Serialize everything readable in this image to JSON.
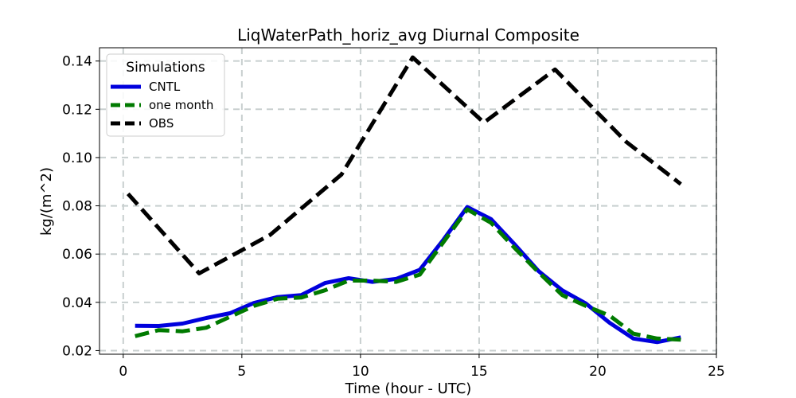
{
  "chart_data": {
    "type": "line",
    "title": "LiqWaterPath_horiz_avg Diurnal Composite",
    "xlabel": "Time (hour - UTC)",
    "ylabel": "kg/(m^2)",
    "xlim": [
      -1.0,
      25.0
    ],
    "ylim": [
      0.0185,
      0.1455
    ],
    "xticks": [
      0,
      5,
      10,
      15,
      20,
      25
    ],
    "xtick_labels": [
      "0",
      "5",
      "10",
      "15",
      "20",
      "25"
    ],
    "yticks": [
      0.02,
      0.04,
      0.06,
      0.08,
      0.1,
      0.12,
      0.14
    ],
    "ytick_labels": [
      "0.02",
      "0.04",
      "0.06",
      "0.08",
      "0.10",
      "0.12",
      "0.14"
    ],
    "grid": true,
    "legend": {
      "title": "Simulations",
      "placement": "top-left"
    },
    "series": [
      {
        "name": "CNTL",
        "color": "#0000dd",
        "style": "solid",
        "x": [
          0.5,
          1.5,
          2.5,
          3.5,
          4.5,
          5.5,
          6.5,
          7.5,
          8.5,
          9.5,
          10.5,
          11.5,
          12.5,
          13.5,
          14.5,
          15.5,
          16.5,
          17.5,
          18.5,
          19.5,
          20.5,
          21.5,
          22.5,
          23.5
        ],
        "y": [
          0.0303,
          0.0302,
          0.0312,
          0.0335,
          0.0355,
          0.0397,
          0.0422,
          0.043,
          0.048,
          0.05,
          0.0485,
          0.0497,
          0.0535,
          0.066,
          0.0795,
          0.0745,
          0.064,
          0.053,
          0.045,
          0.0395,
          0.0315,
          0.025,
          0.0235,
          0.0255
        ]
      },
      {
        "name": "one month",
        "color": "#007a00",
        "style": "dashed",
        "x": [
          0.5,
          1.5,
          2.5,
          3.5,
          4.5,
          5.5,
          6.5,
          7.5,
          8.5,
          9.5,
          10.5,
          11.5,
          12.5,
          13.5,
          14.5,
          15.5,
          16.5,
          17.5,
          18.5,
          19.5,
          20.5,
          21.5,
          22.5,
          23.5
        ],
        "y": [
          0.026,
          0.0285,
          0.028,
          0.0295,
          0.034,
          0.0385,
          0.0415,
          0.042,
          0.045,
          0.049,
          0.049,
          0.0485,
          0.0515,
          0.065,
          0.0785,
          0.073,
          0.0625,
          0.0525,
          0.043,
          0.0385,
          0.0345,
          0.027,
          0.025,
          0.0245
        ]
      },
      {
        "name": "OBS",
        "color": "#000000",
        "style": "dashed",
        "x": [
          0.2,
          3.2,
          6.2,
          9.2,
          12.2,
          15.2,
          18.2,
          21.2,
          23.5
        ],
        "y": [
          0.085,
          0.052,
          0.068,
          0.093,
          0.1415,
          0.1145,
          0.1365,
          0.1065,
          0.089
        ]
      }
    ]
  }
}
